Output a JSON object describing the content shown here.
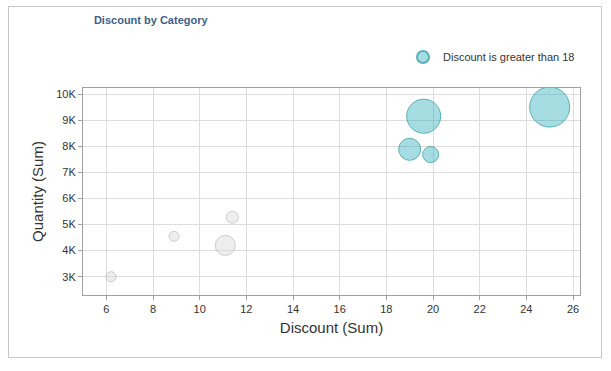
{
  "chart_data": {
    "type": "bubble",
    "title": "Discount by Category",
    "x_label": "Discount (Sum)",
    "y_label": "Quantity (Sum)",
    "series": [
      {
        "name": "Discount is greater than 18",
        "color": "#17a9b6",
        "x": [
          19.0,
          19.6,
          19.9,
          25.0
        ],
        "values": [
          7880,
          9150,
          7680,
          9500
        ],
        "sizes": [
          121,
          289,
          64,
          400
        ]
      },
      {
        "color": "#d6d6d6",
        "x": [
          6.2,
          8.9,
          11.1,
          11.4
        ],
        "values": [
          3000,
          4550,
          4200,
          5280
        ],
        "sizes": [
          25,
          25,
          100,
          36
        ]
      }
    ],
    "xlim": [
      5,
      26.3
    ],
    "xticks": [
      6,
      8,
      10,
      12,
      14,
      16,
      18,
      20,
      22,
      24,
      26
    ],
    "ylim": [
      2300,
      10230
    ],
    "yticks": [
      {
        "value": 3000,
        "label": "3K"
      },
      {
        "value": 4000,
        "label": "4K"
      },
      {
        "value": 5000,
        "label": "5K"
      },
      {
        "value": 6000,
        "label": "6K"
      },
      {
        "value": 7000,
        "label": "7K"
      },
      {
        "value": 8000,
        "label": "8K"
      },
      {
        "value": 9000,
        "label": "9K"
      },
      {
        "value": 10000,
        "label": "10K"
      }
    ],
    "grid": true,
    "legend": "top right"
  }
}
